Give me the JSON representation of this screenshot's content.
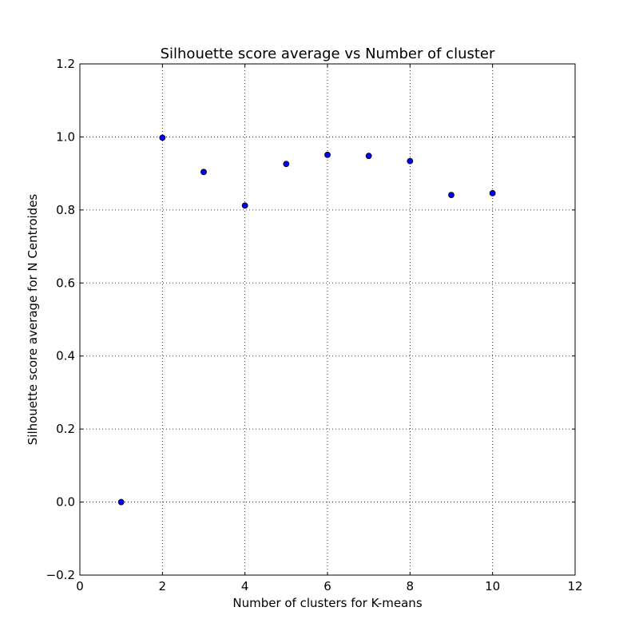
{
  "chart_data": {
    "type": "scatter",
    "title": "Silhouette score average vs Number of cluster",
    "xlabel": "Number of clusters for K-means",
    "ylabel": "Silhouette score average for N Centroides",
    "xlim": [
      0,
      12
    ],
    "ylim": [
      -0.2,
      1.2
    ],
    "x_ticks": [
      0,
      2,
      4,
      6,
      8,
      10,
      12
    ],
    "y_ticks": [
      -0.2,
      0.0,
      0.2,
      0.4,
      0.6,
      0.8,
      1.0,
      1.2
    ],
    "x_tick_labels": [
      "0",
      "2",
      "4",
      "6",
      "8",
      "10",
      "12"
    ],
    "y_tick_labels": [
      "−0.2",
      "0.0",
      "0.2",
      "0.4",
      "0.6",
      "0.8",
      "1.0",
      "1.2"
    ],
    "grid": true,
    "marker_color": "#0000ff",
    "series": [
      {
        "x": [
          1,
          2,
          3,
          4,
          5,
          6,
          7,
          8,
          9,
          10
        ],
        "y": [
          0.0,
          0.998,
          0.904,
          0.812,
          0.926,
          0.951,
          0.948,
          0.934,
          0.841,
          0.846
        ]
      }
    ]
  }
}
